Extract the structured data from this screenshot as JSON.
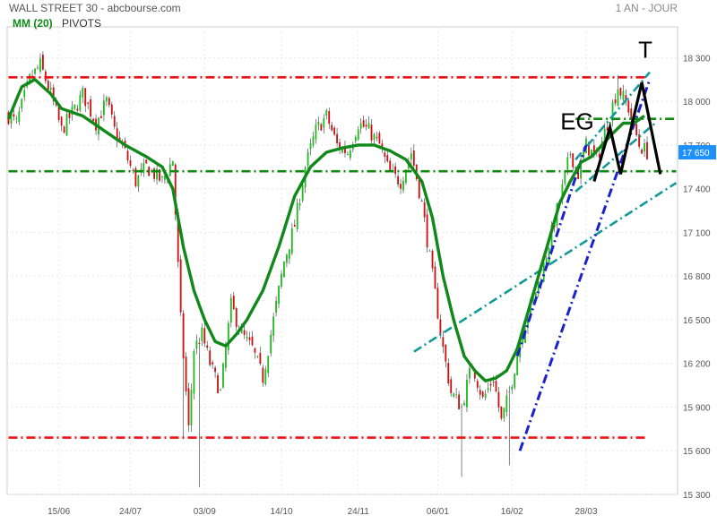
{
  "header": {
    "title": "WALL STREET 30 - abcbourse.com",
    "period": "1 AN - JOUR",
    "legend_ma": "MM (20)",
    "legend_pivots": "PIVOTS"
  },
  "colors": {
    "up": "#22bb22",
    "down": "#cc1111",
    "ma": "#11881a",
    "resistance": "#ee1111",
    "support": "#118811",
    "channel_teal": "#129999",
    "trend_blue": "#1a22cc",
    "pattern": "#000000",
    "price_badge": "#1e90ff",
    "axis_text": "#555555"
  },
  "annotations": {
    "eg_label": "EG",
    "t_label": "T",
    "current_price": "17 650"
  },
  "chart_data": {
    "type": "candlestick",
    "title": "WALL STREET 30 - abcbourse.com",
    "period": "1 AN - JOUR",
    "ylim": [
      15300,
      18450
    ],
    "y_ticks": [
      15300,
      15600,
      15900,
      16200,
      16500,
      16800,
      17100,
      17400,
      17700,
      18000,
      18300
    ],
    "y_tick_labels": [
      "15 300",
      "15 600",
      "15 900",
      "16 200",
      "16 500",
      "16 800",
      "17 100",
      "17 400",
      "17 700",
      "18 000",
      "18 300"
    ],
    "x_range": [
      0,
      252
    ],
    "x_ticks": [
      {
        "label": "15/06",
        "index": 19
      },
      {
        "label": "24/07",
        "index": 46
      },
      {
        "label": "03/09",
        "index": 74
      },
      {
        "label": "14/10",
        "index": 103
      },
      {
        "label": "24/11",
        "index": 132
      },
      {
        "label": "06/01",
        "index": 162
      },
      {
        "label": "16/02",
        "index": 190
      },
      {
        "label": "28/03",
        "index": 218
      }
    ],
    "grid": true,
    "close_anchors": [
      [
        0,
        17900
      ],
      [
        3,
        17850
      ],
      [
        8,
        18150
      ],
      [
        12,
        18250
      ],
      [
        16,
        18050
      ],
      [
        20,
        17800
      ],
      [
        25,
        17950
      ],
      [
        28,
        18050
      ],
      [
        33,
        17850
      ],
      [
        37,
        18000
      ],
      [
        40,
        17800
      ],
      [
        44,
        17650
      ],
      [
        48,
        17450
      ],
      [
        52,
        17550
      ],
      [
        58,
        17450
      ],
      [
        62,
        17600
      ],
      [
        65,
        16500
      ],
      [
        68,
        15750
      ],
      [
        70,
        16300
      ],
      [
        73,
        16400
      ],
      [
        76,
        16200
      ],
      [
        80,
        16000
      ],
      [
        84,
        16600
      ],
      [
        88,
        16400
      ],
      [
        92,
        16300
      ],
      [
        96,
        16100
      ],
      [
        100,
        16500
      ],
      [
        104,
        16900
      ],
      [
        108,
        17150
      ],
      [
        112,
        17550
      ],
      [
        116,
        17800
      ],
      [
        120,
        17900
      ],
      [
        124,
        17700
      ],
      [
        128,
        17650
      ],
      [
        132,
        17850
      ],
      [
        136,
        17800
      ],
      [
        140,
        17700
      ],
      [
        144,
        17500
      ],
      [
        148,
        17450
      ],
      [
        152,
        17650
      ],
      [
        156,
        17300
      ],
      [
        160,
        16800
      ],
      [
        164,
        16300
      ],
      [
        167,
        16000
      ],
      [
        171,
        15900
      ],
      [
        175,
        16200
      ],
      [
        179,
        15950
      ],
      [
        183,
        16100
      ],
      [
        186,
        15800
      ],
      [
        189,
        16000
      ],
      [
        193,
        16350
      ],
      [
        197,
        16600
      ],
      [
        201,
        16800
      ],
      [
        205,
        17100
      ],
      [
        209,
        17400
      ],
      [
        212,
        17650
      ],
      [
        215,
        17500
      ],
      [
        218,
        17700
      ],
      [
        222,
        17600
      ],
      [
        226,
        17850
      ],
      [
        230,
        18100
      ],
      [
        234,
        17950
      ],
      [
        238,
        17700
      ],
      [
        241,
        17650
      ]
    ],
    "special_lows": [
      [
        66,
        15680
      ],
      [
        72,
        15350
      ],
      [
        171,
        15420
      ],
      [
        189,
        15500
      ]
    ],
    "special_highs": [
      [
        12,
        18330
      ],
      [
        230,
        18180
      ]
    ],
    "moving_average": {
      "name": "MM (20)",
      "points": [
        [
          0,
          17880
        ],
        [
          5,
          18100
        ],
        [
          10,
          18150
        ],
        [
          16,
          18050
        ],
        [
          20,
          17950
        ],
        [
          28,
          17900
        ],
        [
          36,
          17800
        ],
        [
          44,
          17700
        ],
        [
          52,
          17620
        ],
        [
          58,
          17550
        ],
        [
          62,
          17400
        ],
        [
          66,
          17000
        ],
        [
          70,
          16700
        ],
        [
          74,
          16500
        ],
        [
          78,
          16350
        ],
        [
          82,
          16320
        ],
        [
          86,
          16400
        ],
        [
          90,
          16500
        ],
        [
          96,
          16700
        ],
        [
          102,
          17000
        ],
        [
          108,
          17350
        ],
        [
          114,
          17550
        ],
        [
          120,
          17650
        ],
        [
          126,
          17680
        ],
        [
          132,
          17700
        ],
        [
          138,
          17700
        ],
        [
          144,
          17660
        ],
        [
          150,
          17600
        ],
        [
          156,
          17450
        ],
        [
          160,
          17200
        ],
        [
          164,
          16800
        ],
        [
          168,
          16500
        ],
        [
          172,
          16250
        ],
        [
          176,
          16150
        ],
        [
          180,
          16080
        ],
        [
          184,
          16100
        ],
        [
          188,
          16150
        ],
        [
          192,
          16300
        ],
        [
          196,
          16550
        ],
        [
          200,
          16800
        ],
        [
          204,
          17050
        ],
        [
          208,
          17300
        ],
        [
          212,
          17450
        ],
        [
          216,
          17580
        ],
        [
          220,
          17620
        ],
        [
          224,
          17700
        ],
        [
          228,
          17780
        ],
        [
          232,
          17850
        ],
        [
          236,
          17850
        ],
        [
          240,
          17900
        ]
      ]
    },
    "lines": [
      {
        "name": "resistance",
        "style": "dashdot",
        "color": "#ee1111",
        "from": [
          0,
          18165
        ],
        "to": [
          241,
          18165
        ]
      },
      {
        "name": "support-low",
        "style": "dashdot",
        "color": "#ee1111",
        "from": [
          0,
          15690
        ],
        "to": [
          241,
          15690
        ]
      },
      {
        "name": "support-pivot",
        "style": "dashdot",
        "color": "#118811",
        "from": [
          0,
          17520
        ],
        "to": [
          252,
          17520
        ]
      },
      {
        "name": "neckline",
        "style": "dashdot",
        "color": "#118811",
        "from": [
          214,
          17880
        ],
        "to": [
          252,
          17880
        ]
      },
      {
        "name": "channel-lower",
        "style": "dashdot",
        "color": "#129999",
        "from": [
          153,
          16280
        ],
        "to": [
          252,
          17440
        ]
      },
      {
        "name": "channel-upper",
        "style": "dashdot",
        "color": "#129999",
        "from": [
          214,
          17600
        ],
        "to": [
          242,
          18200
        ]
      },
      {
        "name": "channel-mid",
        "style": "dashdot",
        "color": "#129999",
        "from": [
          214,
          17380
        ],
        "to": [
          244,
          17850
        ]
      },
      {
        "name": "trend-steep",
        "style": "dashdot",
        "color": "#1a22cc",
        "from": [
          193,
          15600
        ],
        "to": [
          242,
          18150
        ]
      },
      {
        "name": "trend-upper",
        "style": "dashdot",
        "color": "#1a22cc",
        "from": [
          192,
          16250
        ],
        "to": [
          218,
          17700
        ]
      }
    ],
    "pattern": {
      "name": "EG-T",
      "points": [
        [
          221,
          17450
        ],
        [
          227,
          17820
        ],
        [
          231,
          17500
        ],
        [
          239,
          18130
        ],
        [
          246,
          17500
        ]
      ],
      "eg_label_at": [
        223,
        17880
      ],
      "t_label_at": [
        239,
        18250
      ]
    },
    "last_price": 17650
  }
}
